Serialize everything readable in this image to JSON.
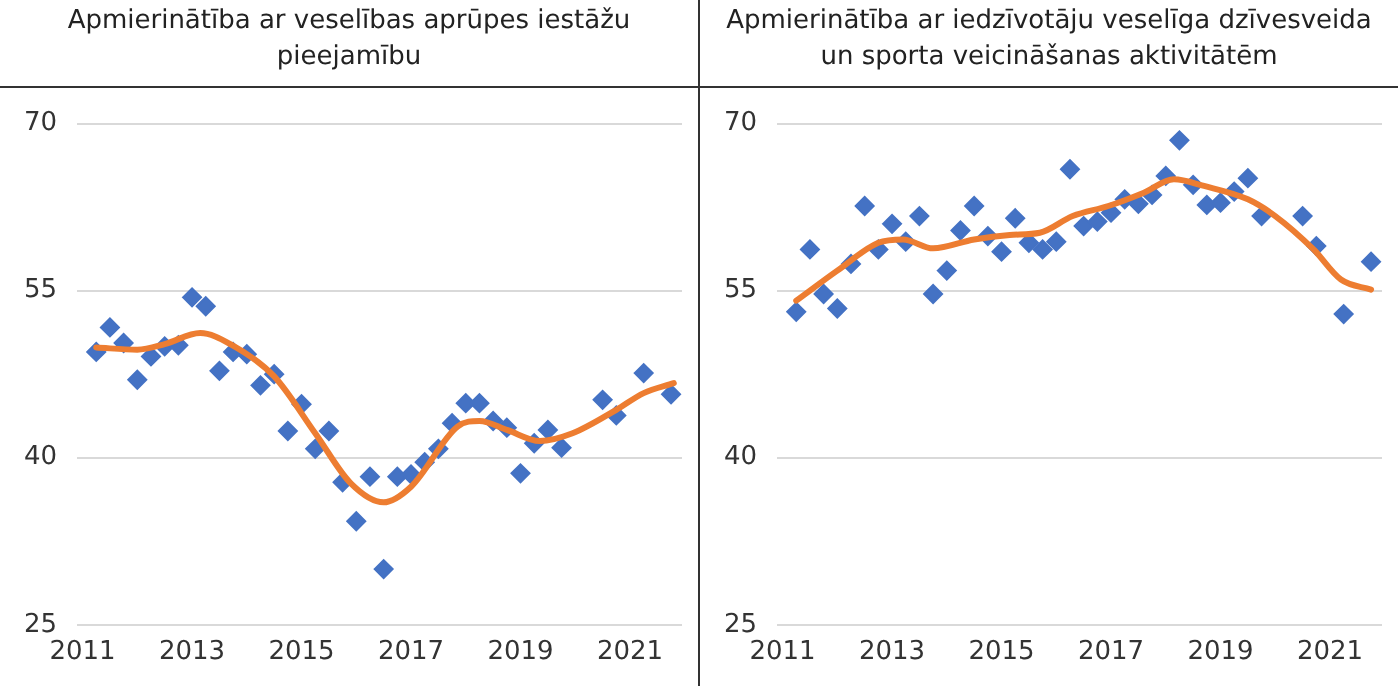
{
  "chart_data": [
    {
      "type": "scatter",
      "title": "Apmierinātība ar veselības aprūpes iestāžu pieejamību",
      "xlim": [
        2010.9,
        2021.95
      ],
      "xticks": [
        2011,
        2013,
        2015,
        2017,
        2019,
        2021
      ],
      "ylim": [
        25,
        70
      ],
      "yticks": [
        25,
        40,
        55,
        70
      ],
      "grid": "y",
      "series": [
        {
          "marker": "diamond",
          "color": "#4472c4",
          "x": [
            2011.25,
            2011.5,
            2011.75,
            2012,
            2012.25,
            2012.5,
            2012.75,
            2013,
            2013.25,
            2013.5,
            2013.75,
            2014,
            2014.25,
            2014.5,
            2014.75,
            2015,
            2015.25,
            2015.5,
            2015.75,
            2016,
            2016.25,
            2016.5,
            2016.75,
            2017,
            2017.25,
            2017.5,
            2017.75,
            2018,
            2018.25,
            2018.5,
            2018.75,
            2019,
            2019.25,
            2019.5,
            2019.75,
            2020.5,
            2020.75,
            2021.25,
            2021.75
          ],
          "values": [
            49.5,
            51.7,
            50.3,
            47.0,
            49.1,
            50.0,
            50.1,
            54.4,
            53.6,
            47.8,
            49.5,
            49.3,
            46.5,
            47.5,
            42.4,
            44.8,
            40.8,
            42.4,
            37.8,
            34.3,
            38.3,
            30.0,
            38.3,
            38.5,
            39.6,
            40.8,
            43.1,
            44.9,
            44.9,
            43.3,
            42.7,
            38.6,
            41.3,
            42.5,
            40.9,
            45.2,
            43.8,
            47.6,
            45.7
          ]
        },
        {
          "type": "line",
          "marker": "none",
          "color": "#ed7d31",
          "x": [
            2011.25,
            2012,
            2012.5,
            2013.15,
            2013.7,
            2014.5,
            2015.25,
            2015.9,
            2016.5,
            2017,
            2017.85,
            2018.25,
            2018.75,
            2019.35,
            2019.95,
            2020.75,
            2021.25,
            2021.8
          ],
          "values": [
            49.9,
            49.7,
            50.2,
            51.2,
            50.2,
            47.3,
            42.2,
            37.7,
            36.0,
            37.4,
            42.8,
            43.3,
            42.5,
            41.5,
            42.2,
            44.3,
            45.8,
            46.7
          ]
        }
      ]
    },
    {
      "type": "scatter",
      "title": "Apmierinātība ar iedzīvotāju veselīga dzīvesveida un sporta veicināšanas aktivitātēm",
      "xlim": [
        2010.9,
        2021.95
      ],
      "xticks": [
        2011,
        2013,
        2015,
        2017,
        2019,
        2021
      ],
      "ylim": [
        25,
        70
      ],
      "yticks": [
        25,
        40,
        55,
        70
      ],
      "grid": "y",
      "series": [
        {
          "marker": "diamond",
          "color": "#4472c4",
          "x": [
            2011.25,
            2011.5,
            2011.75,
            2012,
            2012.25,
            2012.5,
            2012.75,
            2013,
            2013.25,
            2013.5,
            2013.75,
            2014,
            2014.25,
            2014.5,
            2014.75,
            2015,
            2015.25,
            2015.5,
            2015.75,
            2016,
            2016.25,
            2016.5,
            2016.75,
            2017,
            2017.25,
            2017.5,
            2017.75,
            2018,
            2018.25,
            2018.5,
            2018.75,
            2019,
            2019.25,
            2019.5,
            2019.75,
            2020.5,
            2020.75,
            2021.25,
            2021.75
          ],
          "values": [
            53.1,
            58.7,
            54.7,
            53.4,
            57.4,
            62.6,
            58.7,
            61.0,
            59.4,
            61.7,
            54.7,
            56.8,
            60.4,
            62.6,
            59.9,
            58.5,
            61.5,
            59.3,
            58.7,
            59.4,
            65.9,
            60.8,
            61.2,
            62.0,
            63.2,
            62.8,
            63.6,
            65.3,
            68.5,
            64.5,
            62.7,
            62.9,
            63.9,
            65.1,
            61.7,
            61.7,
            59.0,
            52.9,
            57.6
          ]
        },
        {
          "type": "line",
          "marker": "none",
          "color": "#ed7d31",
          "x": [
            2011.25,
            2012,
            2012.75,
            2013.2,
            2013.75,
            2014.5,
            2015.15,
            2015.7,
            2016.3,
            2016.95,
            2017.6,
            2018.15,
            2018.7,
            2019.5,
            2020,
            2020.7,
            2021.2,
            2021.75
          ],
          "values": [
            54.1,
            56.8,
            59.3,
            59.6,
            58.8,
            59.6,
            60.0,
            60.2,
            61.7,
            62.6,
            63.8,
            65.0,
            64.4,
            63.2,
            61.7,
            58.7,
            56.0,
            55.1
          ]
        }
      ]
    }
  ]
}
